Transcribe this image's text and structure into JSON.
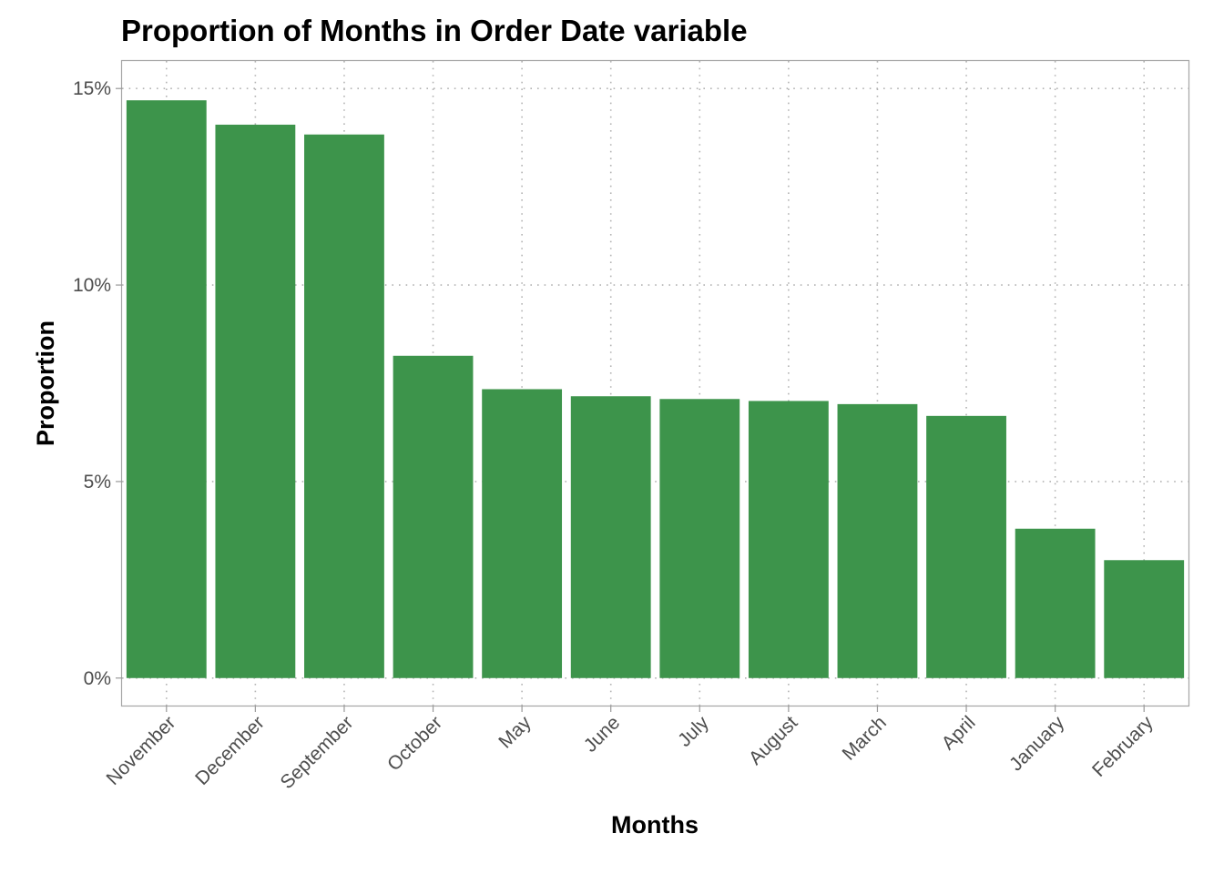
{
  "chart_data": {
    "type": "bar",
    "title": "Proportion of Months in Order Date variable",
    "xlabel": "Months",
    "ylabel": "Proportion",
    "categories": [
      "November",
      "December",
      "September",
      "October",
      "May",
      "June",
      "July",
      "August",
      "March",
      "April",
      "January",
      "February"
    ],
    "values": [
      14.7,
      14.08,
      13.83,
      8.2,
      7.35,
      7.17,
      7.1,
      7.05,
      6.97,
      6.67,
      3.8,
      3.0
    ],
    "value_unit": "%",
    "ylim": [
      -0.7,
      15.7
    ],
    "yticks": [
      0,
      5,
      10,
      15
    ],
    "ytick_labels": [
      "0%",
      "5%",
      "10%",
      "15%"
    ],
    "grid": true,
    "grid_style": "dotted",
    "legend": "none",
    "bar_color": "#3d944b",
    "grid_color": "#b3b3b3",
    "panel_border_color": "#a6a6a6"
  }
}
